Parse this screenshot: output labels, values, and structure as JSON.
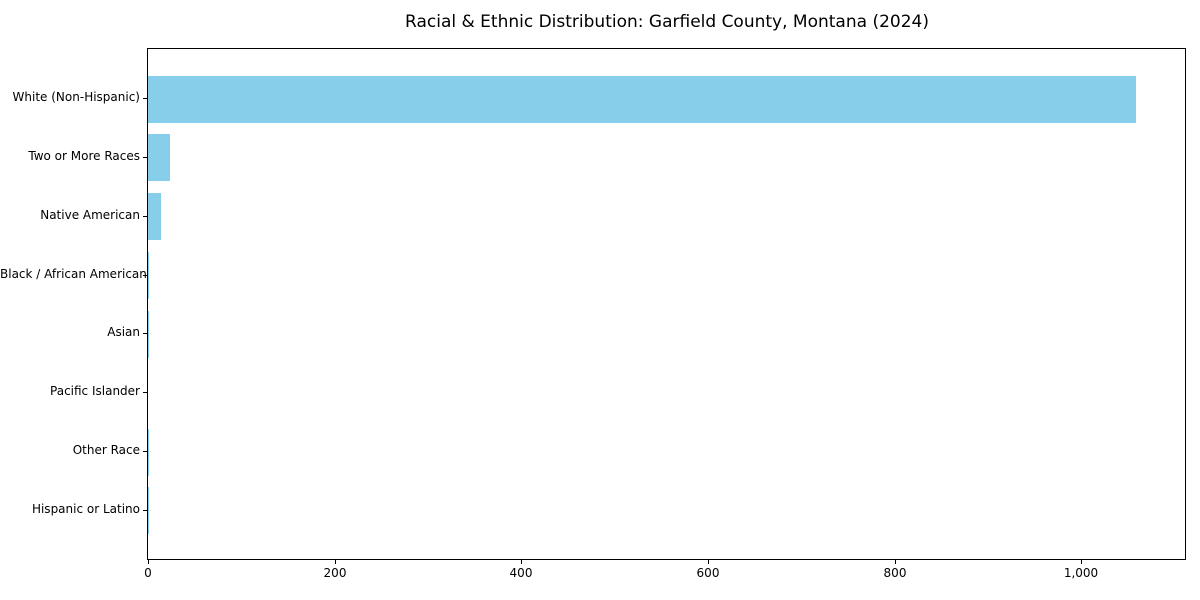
{
  "chart_data": {
    "type": "bar",
    "orientation": "horizontal",
    "title": "Racial & Ethnic Distribution: Garfield County, Montana (2024)",
    "xlabel": "",
    "ylabel": "",
    "categories": [
      "White (Non-Hispanic)",
      "Two or More Races",
      "Native American",
      "Black / African American",
      "Asian",
      "Pacific Islander",
      "Other Race",
      "Hispanic or Latino"
    ],
    "values": [
      1058,
      24,
      14,
      1,
      1,
      0,
      1,
      1
    ],
    "xlim": [
      0,
      1111
    ],
    "x_ticks": [
      0,
      200,
      400,
      600,
      800,
      1000
    ],
    "x_tick_labels": [
      "0",
      "200",
      "400",
      "600",
      "800",
      "1,000"
    ],
    "bar_color": "#87CEEB",
    "frame_color": "#000000",
    "text_color": "#000000",
    "grid": false,
    "legend": null
  }
}
